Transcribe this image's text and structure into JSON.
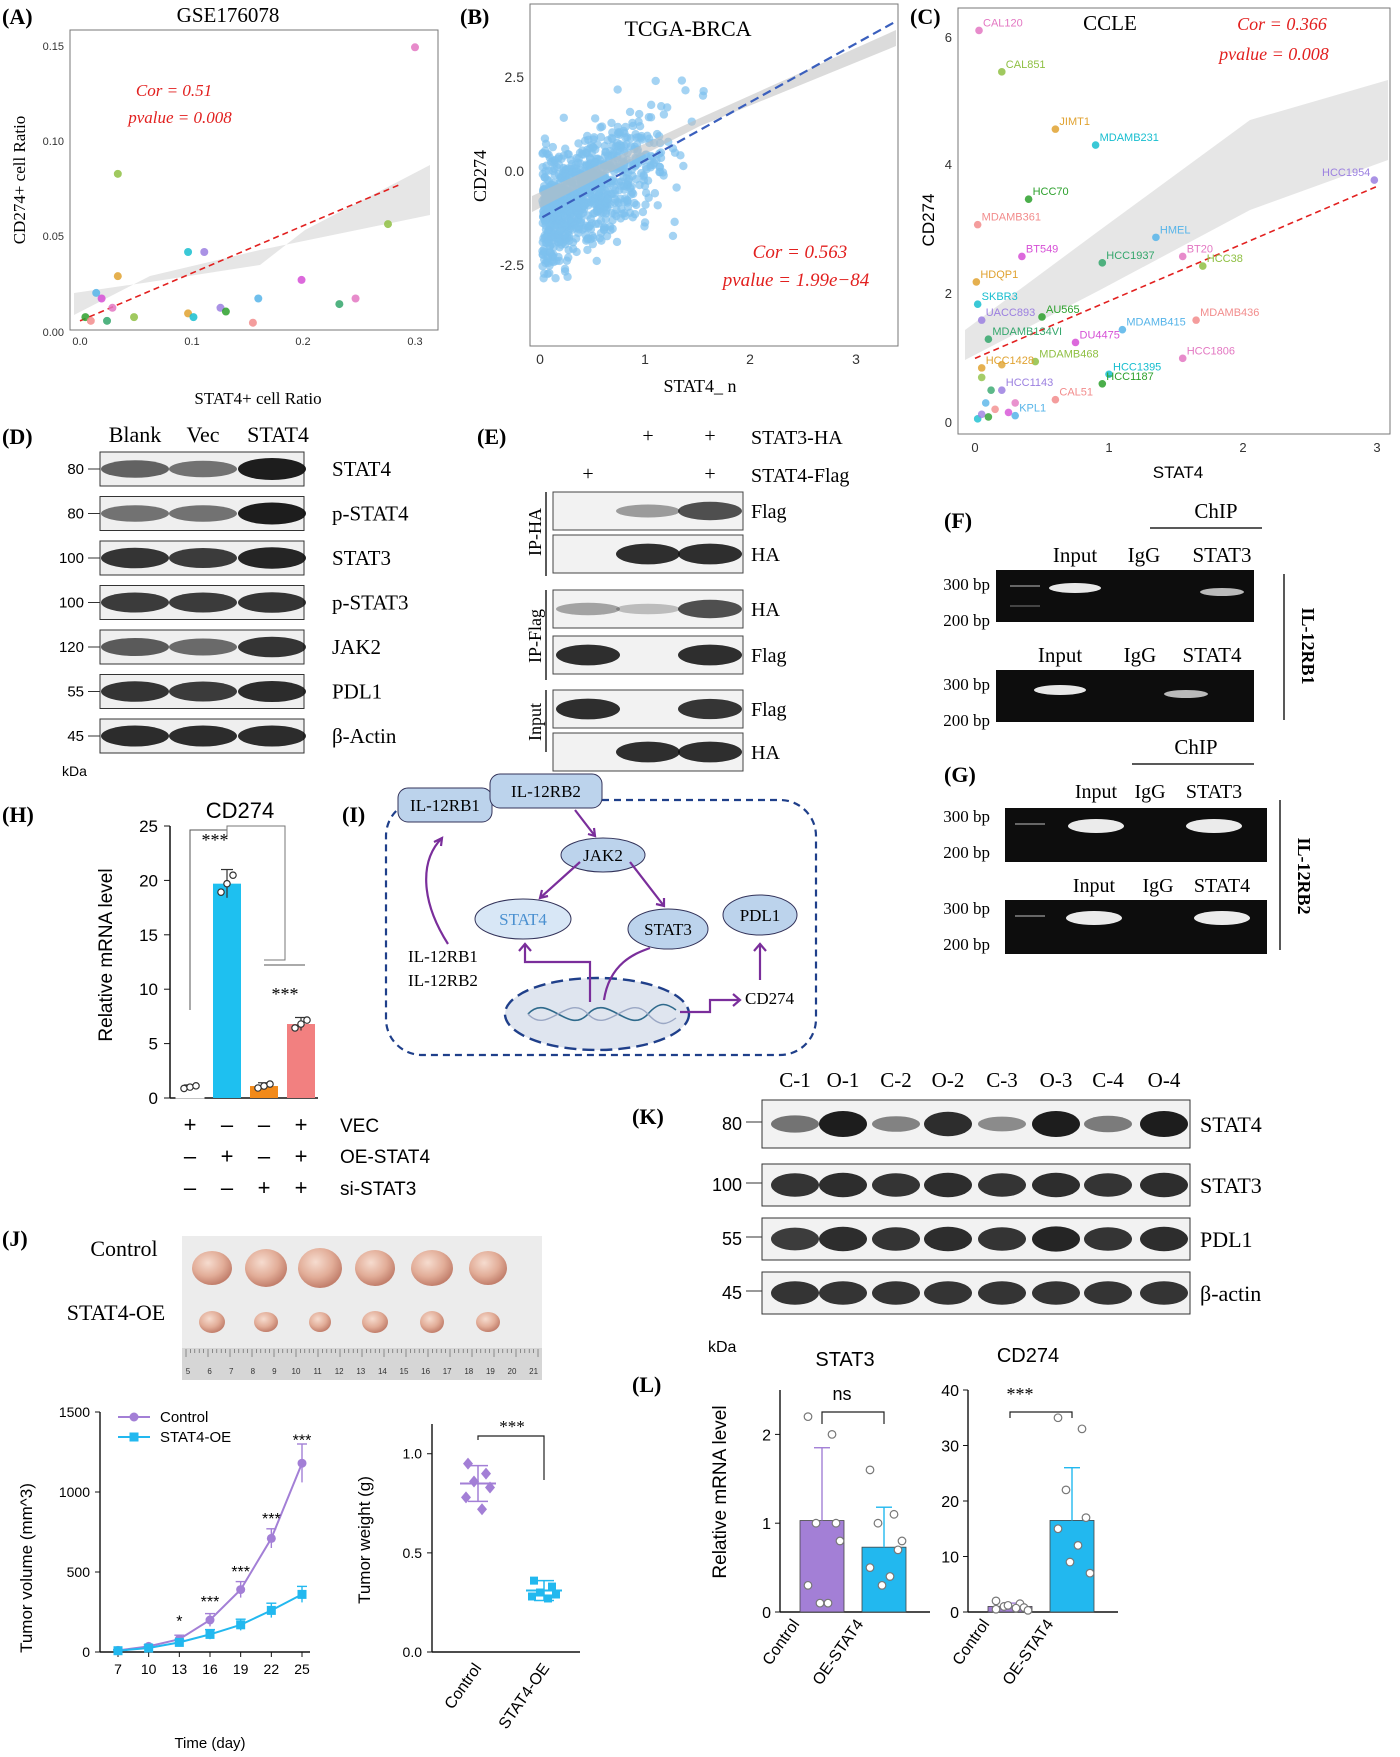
{
  "panels": {
    "A": {
      "letter": "(A)",
      "title": "GSE176078",
      "xlabel": "STAT4+ cell Ratio",
      "ylabel": "CD274+ cell Ratio",
      "cor": "Cor = 0.51",
      "pvalue": "pvalue = 0.008",
      "xticks": [
        "0.0",
        "0.1",
        "0.2",
        "0.3"
      ],
      "yticks": [
        "0.00",
        "0.05",
        "0.10",
        "0.15"
      ]
    },
    "B": {
      "letter": "(B)",
      "title": "TCGA-BRCA",
      "xlabel": "STAT4_ n",
      "ylabel": "CD274",
      "cor": "Cor = 0.563",
      "pvalue": "pvalue = 1.99e−84",
      "xticks": [
        "0",
        "1",
        "2",
        "3"
      ],
      "yticks": [
        "-2.5",
        "0.0",
        "2.5"
      ]
    },
    "C": {
      "letter": "(C)",
      "title": "CCLE",
      "xlabel": "STAT4",
      "ylabel": "CD274",
      "cor": "Cor = 0.366",
      "pvalue": "pvalue = 0.008",
      "xticks": [
        "0",
        "1",
        "2",
        "3"
      ],
      "yticks": [
        "0",
        "2",
        "4",
        "6"
      ]
    },
    "D": {
      "letter": "(D)",
      "lanes": [
        "Blank",
        "Vec",
        "STAT4"
      ],
      "kda_unit": "kDa",
      "rows": [
        {
          "kda": "80",
          "label": "STAT4"
        },
        {
          "kda": "80",
          "label": "p-STAT4"
        },
        {
          "kda": "100",
          "label": "STAT3"
        },
        {
          "kda": "100",
          "label": "p-STAT3"
        },
        {
          "kda": "120",
          "label": "JAK2"
        },
        {
          "kda": "55",
          "label": "PDL1"
        },
        {
          "kda": "45",
          "label": "β-Actin"
        }
      ]
    },
    "E": {
      "letter": "(E)",
      "cond1": "STAT3-HA",
      "cond2": "STAT4-Flag",
      "plus": "+",
      "ip_ha": "IP-HA",
      "ip_flag": "IP-Flag",
      "input": "Input",
      "rows": [
        "Flag",
        "HA",
        "HA",
        "Flag",
        "Flag",
        "HA"
      ]
    },
    "F": {
      "letter": "(F)",
      "chip": "ChIP",
      "input": "Input",
      "igg": "IgG",
      "stat3": "STAT3",
      "stat4": "STAT4",
      "bp300": "300 bp",
      "bp200": "200 bp",
      "gene": "IL-12RB1"
    },
    "G": {
      "letter": "(G)",
      "chip": "ChIP",
      "input": "Input",
      "igg": "IgG",
      "stat3": "STAT3",
      "stat4": "STAT4",
      "bp300": "300 bp",
      "bp200": "200 bp",
      "gene": "IL-12RB2"
    },
    "H": {
      "letter": "(H)",
      "title": "CD274",
      "ylabel": "Relative mRNA level",
      "yticks": [
        "0",
        "5",
        "10",
        "15",
        "20",
        "25"
      ],
      "sig1": "***",
      "sig2": "***",
      "rowlabels": [
        "VEC",
        "OE-STAT4",
        "si-STAT3"
      ],
      "signs": [
        [
          "+",
          "–",
          "–",
          "+"
        ],
        [
          "–",
          "+",
          "–",
          "+"
        ],
        [
          "–",
          "–",
          "+",
          "+"
        ]
      ]
    },
    "I": {
      "letter": "(I)",
      "nodes": {
        "il12rb1": "IL-12RB1",
        "il12rb2": "IL-12RB2",
        "jak2": "JAK2",
        "stat4": "STAT4",
        "stat3": "STAT3",
        "pdl1": "PDL1",
        "cd274": "CD274",
        "side1": "IL-12RB1",
        "side2": "IL-12RB2"
      }
    },
    "J": {
      "letter": "(J)",
      "control": "Control",
      "oe": "STAT4-OE",
      "ruler": [
        "5",
        "6",
        "7",
        "8",
        "9",
        "10",
        "11",
        "12",
        "13",
        "14",
        "15",
        "16",
        "17",
        "18",
        "19",
        "20",
        "21"
      ]
    },
    "J2": {
      "ylabel": "Tumor volume (mm^3)",
      "xlabel": "Time (day)",
      "yticks": [
        "0",
        "500",
        "1000",
        "1500"
      ],
      "xticks": [
        "7",
        "10",
        "13",
        "16",
        "19",
        "22",
        "25"
      ],
      "legend": [
        "Control",
        "STAT4-OE"
      ],
      "sig": [
        "*",
        "***",
        "***",
        "***",
        "***"
      ]
    },
    "J3": {
      "ylabel": "Tumor weight (g)",
      "yticks": [
        "0.0",
        "0.5",
        "1.0"
      ],
      "xticks": [
        "Control",
        "STAT4-OE"
      ],
      "sig": "***"
    },
    "K": {
      "letter": "(K)",
      "lanes": [
        "C-1",
        "O-1",
        "C-2",
        "O-2",
        "C-3",
        "O-3",
        "C-4",
        "O-4"
      ],
      "kda_unit": "kDa",
      "rows": [
        {
          "kda": "80",
          "label": "STAT4"
        },
        {
          "kda": "100",
          "label": "STAT3"
        },
        {
          "kda": "55",
          "label": "PDL1"
        },
        {
          "kda": "45",
          "label": "β-actin"
        }
      ]
    },
    "L": {
      "letter": "(L)",
      "ylabel": "Relative mRNA level",
      "t1": "STAT3",
      "t2": "CD274",
      "sig1": "ns",
      "sig2": "***",
      "yticks1": [
        "0",
        "1",
        "2"
      ],
      "yticks2": [
        "0",
        "10",
        "20",
        "30",
        "40"
      ],
      "xticks": [
        "Control",
        "OE-STAT4"
      ]
    }
  },
  "chart_data": [
    {
      "type": "scatter",
      "panel": "A",
      "xlim": [
        0,
        0.31
      ],
      "ylim": [
        -0.003,
        0.155
      ],
      "points": [
        [
          0.31,
          0.15
        ],
        [
          0.035,
          0.082
        ],
        [
          0.035,
          0.027
        ],
        [
          0.1,
          0.04
        ],
        [
          0.115,
          0.04
        ],
        [
          0.005,
          0.005
        ],
        [
          0.01,
          0.003
        ],
        [
          0.015,
          0.018
        ],
        [
          0.02,
          0.015
        ],
        [
          0.025,
          0.003
        ],
        [
          0.03,
          0.01
        ],
        [
          0.05,
          0.005
        ],
        [
          0.1,
          0.007
        ],
        [
          0.105,
          0.005
        ],
        [
          0.13,
          0.01
        ],
        [
          0.135,
          0.008
        ],
        [
          0.16,
          0.002
        ],
        [
          0.165,
          0.015
        ],
        [
          0.205,
          0.025
        ],
        [
          0.24,
          0.012
        ],
        [
          0.255,
          0.015
        ],
        [
          0.285,
          0.055
        ]
      ],
      "fit": [
        [
          0,
          0.003
        ],
        [
          0.31,
          0.076
        ]
      ]
    },
    {
      "type": "scatter",
      "panel": "B",
      "xlim": [
        -0.1,
        3.4
      ],
      "ylim": [
        -4.6,
        4.2
      ],
      "fit": [
        [
          0,
          -1.3
        ],
        [
          3.4,
          3.8
        ]
      ]
    },
    {
      "type": "scatter",
      "panel": "C",
      "xlim": [
        -0.05,
        3
      ],
      "ylim": [
        -0.1,
        6.3
      ],
      "points": [
        {
          "name": "CAL120",
          "x": 0.03,
          "y": 6.15
        },
        {
          "name": "CAL851",
          "x": 0.2,
          "y": 5.5
        },
        {
          "name": "JIMT1",
          "x": 0.6,
          "y": 4.6
        },
        {
          "name": "MDAMB231",
          "x": 0.9,
          "y": 4.35
        },
        {
          "name": "HCC1954",
          "x": 2.98,
          "y": 3.8
        },
        {
          "name": "HCC70",
          "x": 0.4,
          "y": 3.5
        },
        {
          "name": "MDAMB361",
          "x": 0.02,
          "y": 3.1
        },
        {
          "name": "HMEL",
          "x": 1.35,
          "y": 2.9
        },
        {
          "name": "BT549",
          "x": 0.35,
          "y": 2.6
        },
        {
          "name": "HCC1937",
          "x": 0.95,
          "y": 2.5
        },
        {
          "name": "BT20",
          "x": 1.55,
          "y": 2.6
        },
        {
          "name": "HCC38",
          "x": 1.7,
          "y": 2.45
        },
        {
          "name": "HDQP1",
          "x": 0.01,
          "y": 2.2
        },
        {
          "name": "SKBR3",
          "x": 0.02,
          "y": 1.85
        },
        {
          "name": "UACC893",
          "x": 0.05,
          "y": 1.6
        },
        {
          "name": "AU565",
          "x": 0.5,
          "y": 1.65
        },
        {
          "name": "MDAMB436",
          "x": 1.65,
          "y": 1.6
        },
        {
          "name": "MDAMB415",
          "x": 1.1,
          "y": 1.45
        },
        {
          "name": "DU4475",
          "x": 0.75,
          "y": 1.25
        },
        {
          "name": "MDAMB134VI",
          "x": 0.1,
          "y": 1.3
        },
        {
          "name": "HCC1806",
          "x": 1.55,
          "y": 1.0
        },
        {
          "name": "MDAMB468",
          "x": 0.45,
          "y": 0.95
        },
        {
          "name": "HCC1428",
          "x": 0.05,
          "y": 0.85
        },
        {
          "name": "HCC1395",
          "x": 1.0,
          "y": 0.75
        },
        {
          "name": "HCC1143",
          "x": 0.2,
          "y": 0.5
        },
        {
          "name": "HCC1187",
          "x": 0.95,
          "y": 0.6
        },
        {
          "name": "CAL51",
          "x": 0.6,
          "y": 0.35
        },
        {
          "name": "KPL1",
          "x": 0.3,
          "y": 0.1
        }
      ],
      "fit": [
        [
          0,
          1.0
        ],
        [
          3,
          3.7
        ]
      ]
    },
    {
      "type": "bar",
      "panel": "H",
      "categories": [
        "VEC",
        "OE-STAT4",
        "si-STAT3",
        "OE-STAT4+si-STAT3"
      ],
      "values": [
        1.0,
        19.7,
        1.1,
        6.8
      ],
      "errors": [
        0.2,
        1.3,
        0.3,
        0.6
      ],
      "ylim": [
        0,
        25
      ]
    },
    {
      "type": "line",
      "panel": "J2",
      "x": [
        7,
        10,
        13,
        16,
        19,
        22,
        25
      ],
      "series": [
        {
          "name": "Control",
          "values": [
            10,
            35,
            80,
            200,
            390,
            710,
            1180
          ],
          "errors": [
            5,
            10,
            25,
            40,
            50,
            60,
            120
          ]
        },
        {
          "name": "STAT4-OE",
          "values": [
            8,
            25,
            60,
            110,
            170,
            260,
            360
          ],
          "errors": [
            4,
            8,
            15,
            30,
            35,
            45,
            50
          ]
        }
      ],
      "ylim": [
        0,
        1500
      ]
    },
    {
      "type": "scatter",
      "panel": "J3",
      "categories": [
        "Control",
        "STAT4-OE"
      ],
      "means": [
        0.85,
        0.31
      ],
      "sd": [
        0.09,
        0.05
      ],
      "points": [
        [
          0.95,
          0.9,
          0.86,
          0.83,
          0.78,
          0.72
        ],
        [
          0.36,
          0.33,
          0.3,
          0.29,
          0.28,
          0.27
        ]
      ],
      "ylim": [
        0,
        1.15
      ]
    },
    {
      "type": "bar",
      "panel": "L1",
      "categories": [
        "Control",
        "OE-STAT4"
      ],
      "values": [
        1.03,
        0.73
      ],
      "errors": [
        0.82,
        0.45
      ],
      "ylim": [
        0,
        2.5
      ],
      "points": [
        [
          2.2,
          2.0,
          1.0,
          1.0,
          0.3,
          0.1,
          0.1,
          0.8
        ],
        [
          1.6,
          1.1,
          1.0,
          0.7,
          0.5,
          0.4,
          0.3,
          0.8
        ]
      ]
    },
    {
      "type": "bar",
      "panel": "L2",
      "categories": [
        "Control",
        "OE-STAT4"
      ],
      "values": [
        1.0,
        16.5
      ],
      "errors": [
        0.6,
        9.5
      ],
      "ylim": [
        0,
        40
      ],
      "points": [
        [
          2.0,
          1.5,
          1.0,
          0.8,
          0.5,
          0.7,
          1.2,
          0.3
        ],
        [
          35,
          33,
          22,
          17,
          15,
          12,
          9,
          7
        ]
      ]
    }
  ]
}
